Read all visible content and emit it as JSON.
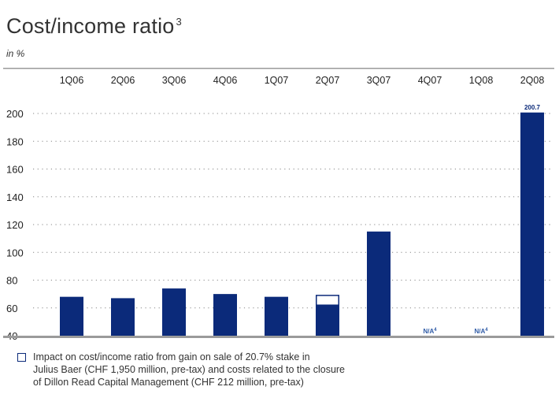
{
  "chart_data": {
    "type": "bar",
    "title": "Cost/income ratio",
    "title_footnote": "3",
    "subtitle": "in %",
    "categories": [
      "1Q06",
      "2Q06",
      "3Q06",
      "4Q06",
      "1Q07",
      "2Q07",
      "3Q07",
      "4Q07",
      "1Q08",
      "2Q08"
    ],
    "values": [
      68,
      67,
      74,
      70,
      68,
      62,
      115,
      null,
      null,
      200.7
    ],
    "impact_overlay": [
      null,
      null,
      null,
      null,
      null,
      7,
      null,
      null,
      null,
      null
    ],
    "data_labels": [
      {
        "category": "4Q07",
        "text": "N/A",
        "footnote": "4"
      },
      {
        "category": "1Q08",
        "text": "N/A",
        "footnote": "4"
      },
      {
        "category": "2Q08",
        "text": "200.7"
      }
    ],
    "yticks": [
      40,
      60,
      80,
      100,
      120,
      140,
      160,
      180,
      200
    ],
    "ylim": [
      40,
      205
    ],
    "grid": "dotted-horizontal",
    "legend": {
      "position": "bottom",
      "entries": [
        {
          "symbol": "hollow-square",
          "lines": [
            "Impact on cost/income ratio from gain on sale of 20.7% stake in",
            "Julius Baer (CHF 1,950 million, pre-tax) and costs related to the closure",
            "of Dillon Read Capital Management (CHF 212 million, pre-tax)"
          ]
        }
      ]
    },
    "colors": {
      "bar": "#0b2a7a",
      "axis": "#9a9a9a",
      "grid": "#888888",
      "na_text": "#2e5aa6"
    }
  }
}
